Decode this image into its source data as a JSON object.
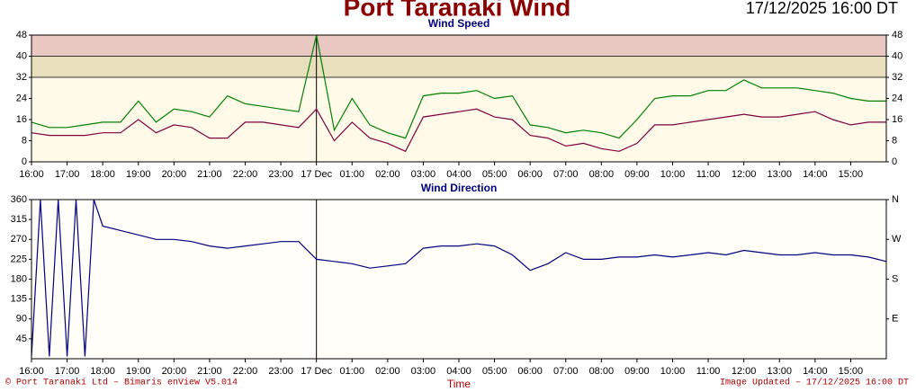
{
  "header": {
    "title": "Port Taranaki Wind",
    "timestamp": "17/12/2025 16:00 DT"
  },
  "footer": {
    "copyright": "© Port Taranaki Ltd – Bimaris enView V5.014",
    "x_label": "Time",
    "updated": "Image Updated – 17/12/2025 16:00 DT"
  },
  "chart_data": [
    {
      "type": "line",
      "title": "Wind Speed",
      "x": [
        0,
        0.5,
        1,
        1.5,
        2,
        2.5,
        3,
        3.5,
        4,
        4.5,
        5,
        5.5,
        6,
        6.5,
        7,
        7.5,
        8,
        8.5,
        9,
        9.5,
        10,
        10.5,
        11,
        11.5,
        12,
        12.5,
        13,
        13.5,
        14,
        14.5,
        15,
        15.5,
        16,
        16.5,
        17,
        17.5,
        18,
        18.5,
        19,
        19.5,
        20,
        20.5,
        21,
        21.5,
        22,
        22.5,
        23,
        23.5,
        24
      ],
      "series": [
        {
          "color": "#008000",
          "values": [
            15,
            13,
            13,
            14,
            15,
            15,
            23,
            15,
            20,
            19,
            17,
            25,
            22,
            21,
            20,
            19,
            48,
            12,
            24,
            14,
            11,
            9,
            25,
            26,
            26,
            27,
            24,
            25,
            14,
            13,
            11,
            12,
            11,
            9,
            16,
            24,
            25,
            25,
            27,
            27,
            31,
            28,
            28,
            28,
            27,
            26,
            24,
            23,
            23
          ]
        },
        {
          "color": "#800040",
          "values": [
            11,
            10,
            10,
            10,
            11,
            11,
            16,
            11,
            14,
            13,
            9,
            9,
            15,
            15,
            14,
            13,
            20,
            8,
            15,
            9,
            7,
            4,
            17,
            18,
            19,
            20,
            17,
            16,
            10,
            9,
            6,
            7,
            5,
            4,
            7,
            14,
            14,
            15,
            16,
            17,
            18,
            17,
            17,
            18,
            19,
            16,
            14,
            15,
            15
          ]
        }
      ],
      "xlim": [
        0,
        24
      ],
      "xticks": [
        {
          "value": 0,
          "label": "16:00"
        },
        {
          "value": 1,
          "label": "17:00"
        },
        {
          "value": 2,
          "label": "18:00"
        },
        {
          "value": 3,
          "label": "19:00"
        },
        {
          "value": 4,
          "label": "20:00"
        },
        {
          "value": 5,
          "label": "21:00"
        },
        {
          "value": 6,
          "label": "22:00"
        },
        {
          "value": 7,
          "label": "23:00"
        },
        {
          "value": 8,
          "label": "17 Dec"
        },
        {
          "value": 9,
          "label": "01:00"
        },
        {
          "value": 10,
          "label": "02:00"
        },
        {
          "value": 11,
          "label": "03:00"
        },
        {
          "value": 12,
          "label": "04:00"
        },
        {
          "value": 13,
          "label": "05:00"
        },
        {
          "value": 14,
          "label": "06:00"
        },
        {
          "value": 15,
          "label": "07:00"
        },
        {
          "value": 16,
          "label": "08:00"
        },
        {
          "value": 17,
          "label": "09:00"
        },
        {
          "value": 18,
          "label": "10:00"
        },
        {
          "value": 19,
          "label": "11:00"
        },
        {
          "value": 20,
          "label": "12:00"
        },
        {
          "value": 21,
          "label": "13:00"
        },
        {
          "value": 22,
          "label": "14:00"
        },
        {
          "value": 23,
          "label": "15:00"
        }
      ],
      "ylim": [
        0,
        48
      ],
      "yticks": [
        0,
        8,
        16,
        24,
        32,
        40,
        48
      ],
      "y2lim": [
        0,
        48
      ],
      "y2ticks": [
        0,
        8,
        16,
        24,
        32,
        40,
        48
      ],
      "bands": [
        {
          "from": 32,
          "to": 40,
          "color": "#e8e0bc"
        },
        {
          "from": 40,
          "to": 48,
          "color": "#e8c8c0"
        }
      ]
    },
    {
      "type": "line",
      "title": "Wind Direction",
      "x": [
        0,
        0.25,
        0.5,
        0.75,
        1,
        1.25,
        1.5,
        1.75,
        2,
        2.5,
        3,
        3.5,
        4,
        4.5,
        5,
        5.5,
        6,
        6.5,
        7,
        7.5,
        8,
        8.5,
        9,
        9.5,
        10,
        10.5,
        11,
        11.5,
        12,
        12.5,
        13,
        13.5,
        14,
        14.5,
        15,
        15.5,
        16,
        16.5,
        17,
        17.5,
        18,
        18.5,
        19,
        19.5,
        20,
        20.5,
        21,
        21.5,
        22,
        22.5,
        23,
        23.5,
        24
      ],
      "series": [
        {
          "color": "#000080",
          "values": [
            5,
            360,
            5,
            360,
            5,
            360,
            5,
            360,
            300,
            290,
            280,
            270,
            270,
            265,
            255,
            250,
            255,
            260,
            265,
            265,
            225,
            220,
            215,
            205,
            210,
            215,
            250,
            255,
            255,
            260,
            255,
            235,
            200,
            215,
            240,
            225,
            225,
            230,
            230,
            235,
            230,
            235,
            240,
            235,
            245,
            240,
            235,
            235,
            240,
            235,
            235,
            230,
            220
          ]
        }
      ],
      "xlim": [
        0,
        24
      ],
      "xticks": [
        {
          "value": 0,
          "label": "16:00"
        },
        {
          "value": 1,
          "label": "17:00"
        },
        {
          "value": 2,
          "label": "18:00"
        },
        {
          "value": 3,
          "label": "19:00"
        },
        {
          "value": 4,
          "label": "20:00"
        },
        {
          "value": 5,
          "label": "21:00"
        },
        {
          "value": 6,
          "label": "22:00"
        },
        {
          "value": 7,
          "label": "23:00"
        },
        {
          "value": 8,
          "label": "17 Dec"
        },
        {
          "value": 9,
          "label": "01:00"
        },
        {
          "value": 10,
          "label": "02:00"
        },
        {
          "value": 11,
          "label": "03:00"
        },
        {
          "value": 12,
          "label": "04:00"
        },
        {
          "value": 13,
          "label": "05:00"
        },
        {
          "value": 14,
          "label": "06:00"
        },
        {
          "value": 15,
          "label": "07:00"
        },
        {
          "value": 16,
          "label": "08:00"
        },
        {
          "value": 17,
          "label": "09:00"
        },
        {
          "value": 18,
          "label": "10:00"
        },
        {
          "value": 19,
          "label": "11:00"
        },
        {
          "value": 20,
          "label": "12:00"
        },
        {
          "value": 21,
          "label": "13:00"
        },
        {
          "value": 22,
          "label": "14:00"
        },
        {
          "value": 23,
          "label": "15:00"
        }
      ],
      "ylim": [
        0,
        360
      ],
      "yticks": [
        45,
        90,
        135,
        180,
        225,
        270,
        315,
        360
      ],
      "y2lim": [
        0,
        360
      ],
      "y2ticks": [
        {
          "value": 360,
          "label": "N"
        },
        {
          "value": 270,
          "label": "W"
        },
        {
          "value": 180,
          "label": "S"
        },
        {
          "value": 90,
          "label": "E"
        }
      ]
    }
  ]
}
